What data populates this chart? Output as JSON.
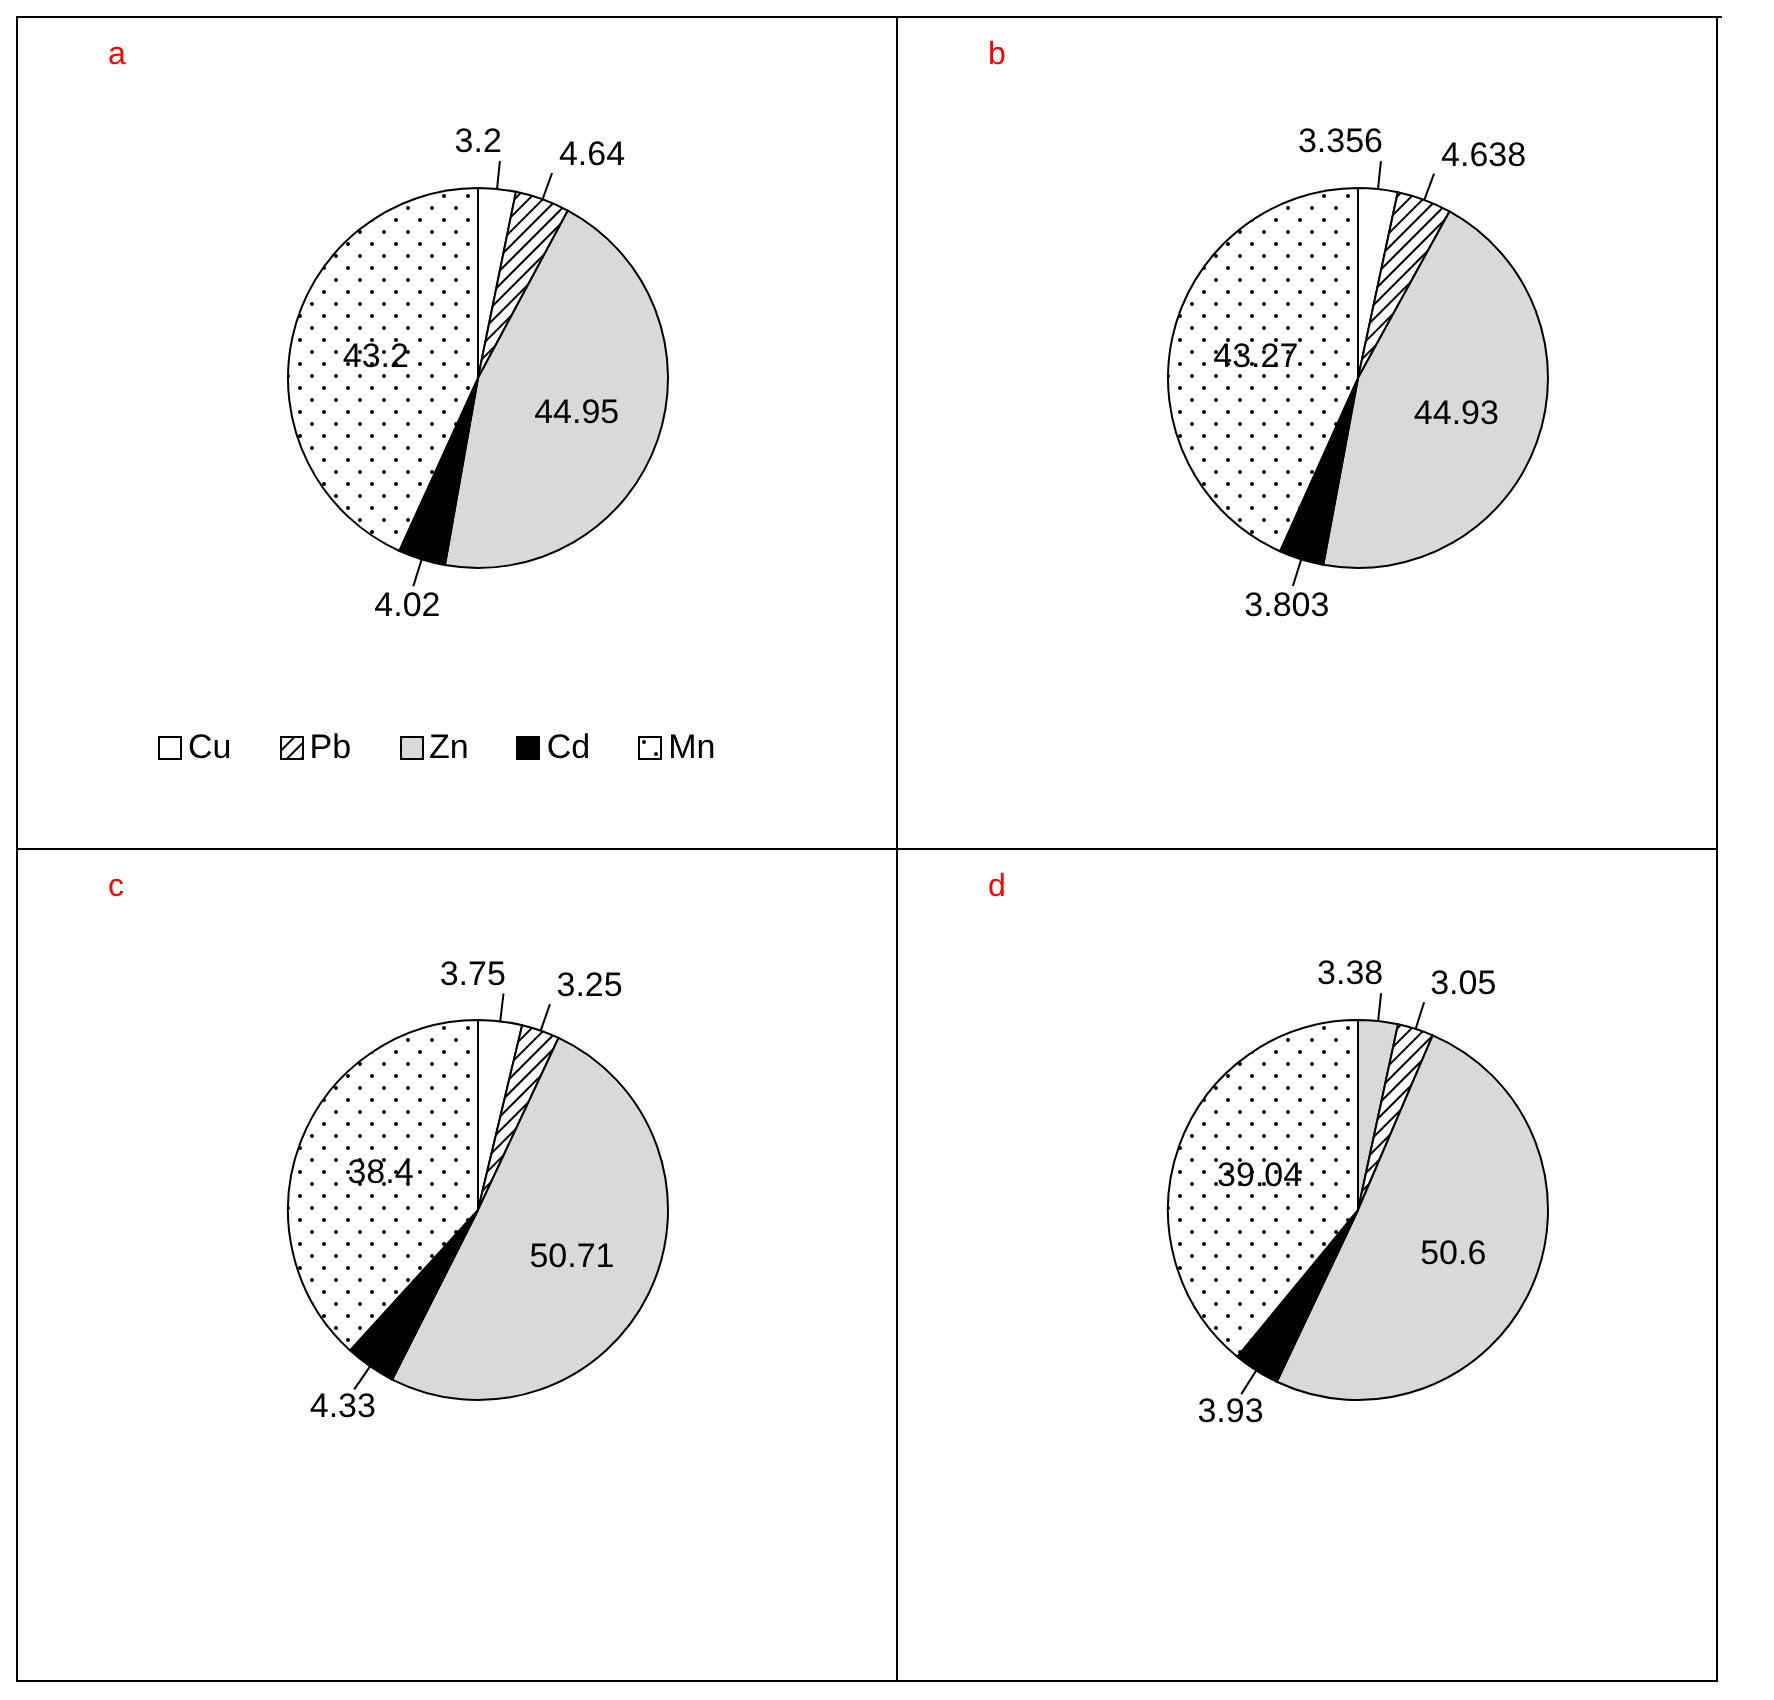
{
  "chart_data": [
    {
      "type": "pie",
      "title": "a",
      "categories": [
        "Cu",
        "Pb",
        "Zn",
        "Cd",
        "Mn"
      ],
      "values": [
        3.2,
        4.64,
        44.95,
        4.02,
        43.2
      ],
      "colors": [
        "#ffffff",
        "#000000",
        "#d9d9d9",
        "#000000",
        "#000000"
      ],
      "data_labels": true,
      "legend": "bottom"
    },
    {
      "type": "pie",
      "title": "b",
      "categories": [
        null,
        null,
        null,
        null,
        null
      ],
      "values": [
        3.356,
        4.638,
        44.93,
        3.803,
        43.27
      ],
      "colors": [
        "#ffffff",
        "#000000",
        "#d9d9d9",
        "#000000",
        "#000000"
      ],
      "data_labels": true
    },
    {
      "type": "pie",
      "title": "c",
      "categories": [
        null,
        null,
        null,
        null,
        null
      ],
      "values": [
        3.75,
        3.25,
        50.71,
        4.33,
        38.4
      ],
      "colors": [
        "#ffffff",
        "#000000",
        "#d9d9d9",
        "#000000",
        "#000000"
      ],
      "data_labels": true
    },
    {
      "type": "pie",
      "title": "d",
      "categories": [
        null,
        null,
        null,
        null,
        null
      ],
      "values": [
        3.38,
        3.05,
        50.6,
        3.93,
        39.04
      ],
      "colors": [
        "#d9d9d9",
        "#000000",
        "#d9d9d9",
        "#000000",
        "#000000"
      ],
      "data_labels": true
    }
  ]
}
